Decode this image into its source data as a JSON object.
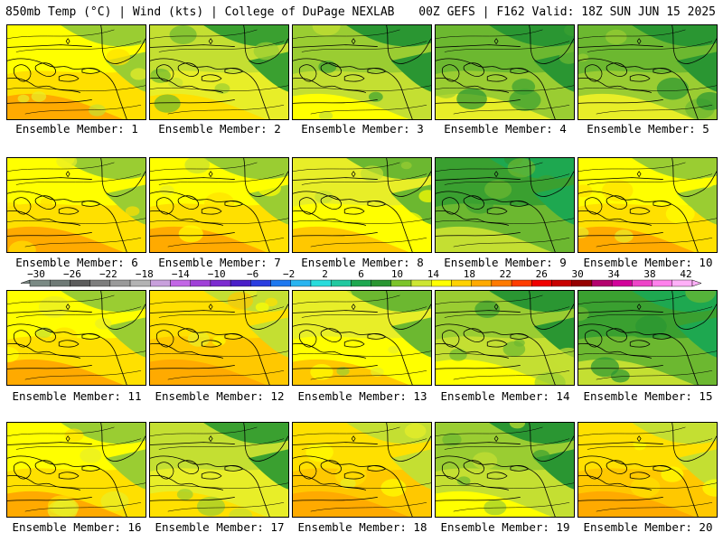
{
  "header": {
    "left": "850mb Temp (°C) | Wind (kts) | College of DuPage NEXLAB",
    "right": "00Z GEFS | F162 Valid: 18Z SUN JUN 15 2025"
  },
  "members": [
    {
      "label": "Ensemble Member: 1",
      "mean_temp_c": 15
    },
    {
      "label": "Ensemble Member: 2",
      "mean_temp_c": 13
    },
    {
      "label": "Ensemble Member: 3",
      "mean_temp_c": 12
    },
    {
      "label": "Ensemble Member: 4",
      "mean_temp_c": 11
    },
    {
      "label": "Ensemble Member: 5",
      "mean_temp_c": 11
    },
    {
      "label": "Ensemble Member: 6",
      "mean_temp_c": 15
    },
    {
      "label": "Ensemble Member: 7",
      "mean_temp_c": 15
    },
    {
      "label": "Ensemble Member: 8",
      "mean_temp_c": 14
    },
    {
      "label": "Ensemble Member: 9",
      "mean_temp_c": 10
    },
    {
      "label": "Ensemble Member: 10",
      "mean_temp_c": 15
    },
    {
      "label": "Ensemble Member: 11",
      "mean_temp_c": 15
    },
    {
      "label": "Ensemble Member: 12",
      "mean_temp_c": 16
    },
    {
      "label": "Ensemble Member: 13",
      "mean_temp_c": 14
    },
    {
      "label": "Ensemble Member: 14",
      "mean_temp_c": 12
    },
    {
      "label": "Ensemble Member: 15",
      "mean_temp_c": 10
    },
    {
      "label": "Ensemble Member: 16",
      "mean_temp_c": 15
    },
    {
      "label": "Ensemble Member: 17",
      "mean_temp_c": 13
    },
    {
      "label": "Ensemble Member: 18",
      "mean_temp_c": 16
    },
    {
      "label": "Ensemble Member: 19",
      "mean_temp_c": 12
    },
    {
      "label": "Ensemble Member: 20",
      "mean_temp_c": 16
    }
  ],
  "legend": {
    "ticks": [
      "−30",
      "−26",
      "−22",
      "−18",
      "−14",
      "−10",
      "−6",
      "−2",
      "2",
      "6",
      "10",
      "14",
      "18",
      "22",
      "26",
      "30",
      "34",
      "38",
      "42"
    ],
    "colors": [
      "#7a8a84",
      "#6f7a76",
      "#5c5c5c",
      "#7d7d7d",
      "#9a9a9a",
      "#b3b3b3",
      "#c8a0dc",
      "#c266e6",
      "#a040d8",
      "#7b2ad0",
      "#4a1ec8",
      "#2a3ce0",
      "#1e78f0",
      "#28b4f0",
      "#28dcdc",
      "#20c8a0",
      "#1ea850",
      "#2a9632",
      "#7cc42a",
      "#cde632",
      "#ffff00",
      "#ffd200",
      "#ffaa00",
      "#ff7a00",
      "#ff3c00",
      "#f00000",
      "#c80000",
      "#960000",
      "#b4006e",
      "#d2009a",
      "#ee44c8",
      "#ff80ec",
      "#ffb0f8"
    ]
  }
}
